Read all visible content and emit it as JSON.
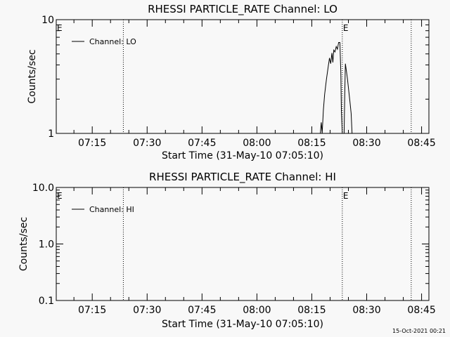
{
  "footer": {
    "timestamp": "15-Oct-2021 00:21"
  },
  "colors": {
    "background": "#f8f8f8",
    "foreground": "#000000"
  },
  "chart_data": [
    {
      "type": "line",
      "title": "RHESSI PARTICLE_RATE Channel: LO",
      "xlabel": "Start Time (31-May-10 07:05:10)",
      "ylabel": "Counts/sec",
      "yscale": "log",
      "ylim": [
        1,
        10
      ],
      "ytick_labels": [
        "1",
        "10"
      ],
      "xlim": [
        "07:05:10",
        "08:47:00"
      ],
      "xtick_labels": [
        "07:15",
        "07:30",
        "07:45",
        "08:00",
        "08:15",
        "08:30",
        "08:45"
      ],
      "grid": false,
      "legend": {
        "position": "top-left",
        "entries": [
          "Channel: LO"
        ]
      },
      "event_markers": [
        {
          "time": "07:05:10",
          "label": "E",
          "style": "none"
        },
        {
          "time": "07:23:30",
          "label": "",
          "style": "dotted"
        },
        {
          "time": "08:23:20",
          "label": "E",
          "style": "dotted"
        },
        {
          "time": "08:42:10",
          "label": "",
          "style": "dotted"
        }
      ],
      "series": [
        {
          "name": "Channel: LO",
          "segments": [
            [
              [
                "08:17:20",
                1.0
              ],
              [
                "08:17:35",
                1.25
              ],
              [
                "08:17:50",
                1.0
              ],
              [
                "08:18:10",
                1.6
              ],
              [
                "08:18:30",
                2.2
              ],
              [
                "08:19:00",
                3.0
              ],
              [
                "08:19:30",
                3.9
              ],
              [
                "08:19:50",
                4.6
              ],
              [
                "08:20:10",
                4.1
              ],
              [
                "08:20:30",
                5.1
              ],
              [
                "08:20:45",
                4.2
              ],
              [
                "08:21:00",
                5.4
              ],
              [
                "08:21:20",
                5.2
              ],
              [
                "08:21:40",
                5.8
              ],
              [
                "08:22:00",
                5.5
              ],
              [
                "08:22:20",
                6.3
              ],
              [
                "08:22:40",
                6.3
              ],
              [
                "08:22:55",
                3.5
              ],
              [
                "08:23:05",
                1.6
              ],
              [
                "08:23:20",
                1.0
              ]
            ],
            [
              [
                "08:23:50",
                1.0
              ],
              [
                "08:24:00",
                2.2
              ],
              [
                "08:24:10",
                4.1
              ],
              [
                "08:24:25",
                3.6
              ],
              [
                "08:24:45",
                3.0
              ],
              [
                "08:25:05",
                2.4
              ],
              [
                "08:25:25",
                1.9
              ],
              [
                "08:25:45",
                1.5
              ],
              [
                "08:26:00",
                1.0
              ]
            ]
          ]
        }
      ]
    },
    {
      "type": "line",
      "title": "RHESSI PARTICLE_RATE Channel: HI",
      "xlabel": "Start Time (31-May-10 07:05:10)",
      "ylabel": "Counts/sec",
      "yscale": "log",
      "ylim": [
        0.1,
        10
      ],
      "ytick_labels": [
        "0.1",
        "1.0",
        "10.0"
      ],
      "xlim": [
        "07:05:10",
        "08:47:00"
      ],
      "xtick_labels": [
        "07:15",
        "07:30",
        "07:45",
        "08:00",
        "08:15",
        "08:30",
        "08:45"
      ],
      "grid": false,
      "legend": {
        "position": "top-left",
        "entries": [
          "Channel: HI"
        ]
      },
      "event_markers": [
        {
          "time": "07:05:10",
          "label": "E",
          "style": "none"
        },
        {
          "time": "07:23:30",
          "label": "",
          "style": "dotted"
        },
        {
          "time": "08:23:20",
          "label": "E",
          "style": "dotted"
        },
        {
          "time": "08:42:10",
          "label": "",
          "style": "dotted"
        }
      ],
      "series": [
        {
          "name": "Channel: HI",
          "segments": []
        }
      ]
    }
  ]
}
